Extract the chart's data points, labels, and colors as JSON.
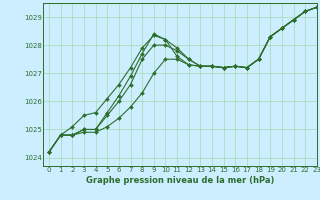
{
  "title": "Graphe pression niveau de la mer (hPa)",
  "bg_color": "#cceeff",
  "grid_color": "#aaddbb",
  "line_color": "#2d6e2d",
  "marker_color": "#2d6e2d",
  "xlim": [
    -0.5,
    23
  ],
  "ylim": [
    1023.7,
    1029.5
  ],
  "yticks": [
    1024,
    1025,
    1026,
    1027,
    1028,
    1029
  ],
  "xticks": [
    0,
    1,
    2,
    3,
    4,
    5,
    6,
    7,
    8,
    9,
    10,
    11,
    12,
    13,
    14,
    15,
    16,
    17,
    18,
    19,
    20,
    21,
    22,
    23
  ],
  "series": [
    [
      1024.2,
      1024.8,
      1024.8,
      1024.9,
      1024.9,
      1025.1,
      1025.4,
      1025.8,
      1026.3,
      1027.0,
      1027.5,
      1027.5,
      1027.3,
      1027.25,
      1027.25,
      1027.2,
      1027.25,
      1027.2,
      1027.5,
      1028.3,
      1028.6,
      1028.9,
      1029.2,
      1029.35
    ],
    [
      1024.2,
      1024.8,
      1024.8,
      1025.0,
      1025.0,
      1025.5,
      1026.0,
      1026.6,
      1027.5,
      1028.0,
      1028.0,
      1027.8,
      1027.5,
      1027.25,
      1027.25,
      1027.2,
      1027.25,
      1027.2,
      1027.5,
      1028.3,
      1028.6,
      1028.9,
      1029.2,
      1029.35
    ],
    [
      1024.2,
      1024.8,
      1024.8,
      1025.0,
      1025.0,
      1025.6,
      1026.2,
      1026.9,
      1027.7,
      1028.4,
      1028.2,
      1027.9,
      1027.5,
      1027.25,
      1027.25,
      1027.2,
      1027.25,
      1027.2,
      1027.5,
      1028.3,
      1028.6,
      1028.9,
      1029.2,
      1029.35
    ],
    [
      1024.2,
      1024.8,
      1025.1,
      1025.5,
      1025.6,
      1026.1,
      1026.6,
      1027.2,
      1027.9,
      1028.35,
      1028.2,
      1027.6,
      1027.3,
      1027.25,
      1027.25,
      1027.2,
      1027.25,
      1027.2,
      1027.5,
      1028.3,
      1028.6,
      1028.9,
      1029.2,
      1029.35
    ]
  ]
}
